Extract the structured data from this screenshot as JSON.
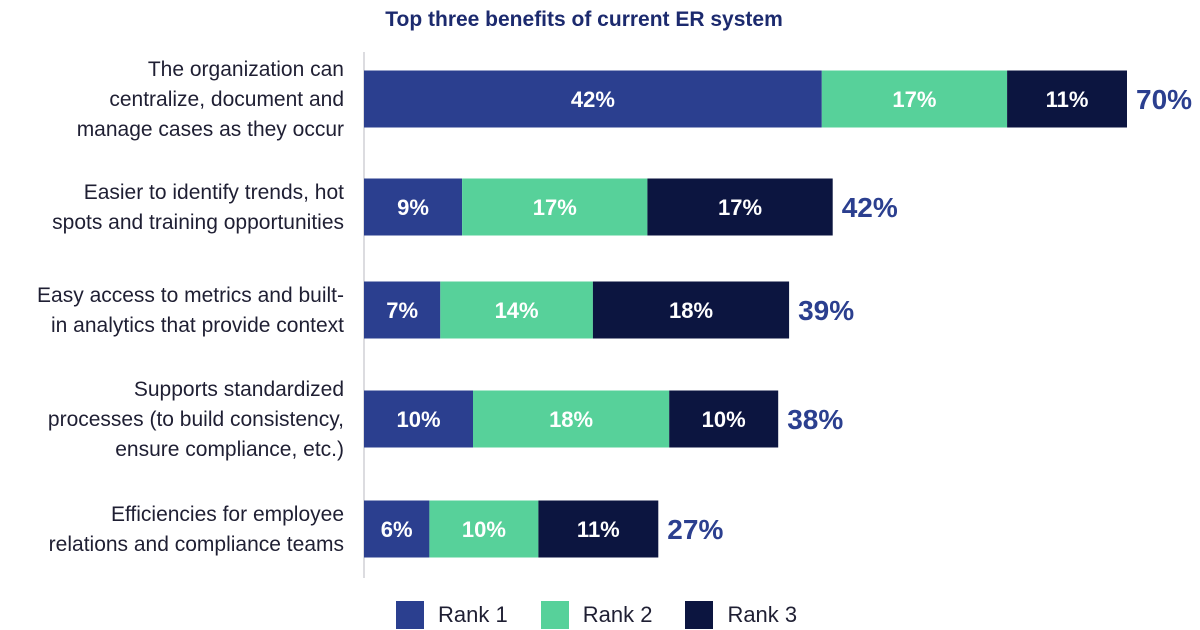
{
  "chart_data": {
    "type": "bar",
    "orientation": "horizontal",
    "stacked": true,
    "title": "Top three benefits of current ER system",
    "categories": [
      [
        "The organization can",
        "centralize, document and",
        "manage cases as they occur"
      ],
      [
        "Easier to identify trends, hot",
        "spots and training opportunities"
      ],
      [
        "Easy access to metrics and built-",
        "in analytics that provide context"
      ],
      [
        "Supports standardized",
        "processes (to build consistency,",
        "ensure compliance, etc.)"
      ],
      [
        "Efficiencies for employee",
        "relations and compliance teams"
      ]
    ],
    "series": [
      {
        "name": "Rank 1",
        "values": [
          42,
          9,
          7,
          10,
          6
        ],
        "color": "#2b3f8f",
        "label_color": "#ffffff"
      },
      {
        "name": "Rank 2",
        "values": [
          17,
          17,
          14,
          18,
          10
        ],
        "color": "#57d19a",
        "label_color": "#ffffff"
      },
      {
        "name": "Rank 3",
        "values": [
          11,
          17,
          18,
          10,
          11
        ],
        "color": "#0c1540",
        "label_color": "#ffffff"
      }
    ],
    "totals": [
      70,
      42,
      39,
      38,
      27
    ],
    "value_suffix": "%",
    "total_color": "#2b3f8f",
    "xlim": [
      0,
      70
    ],
    "grid": false,
    "legend_position": "bottom"
  }
}
